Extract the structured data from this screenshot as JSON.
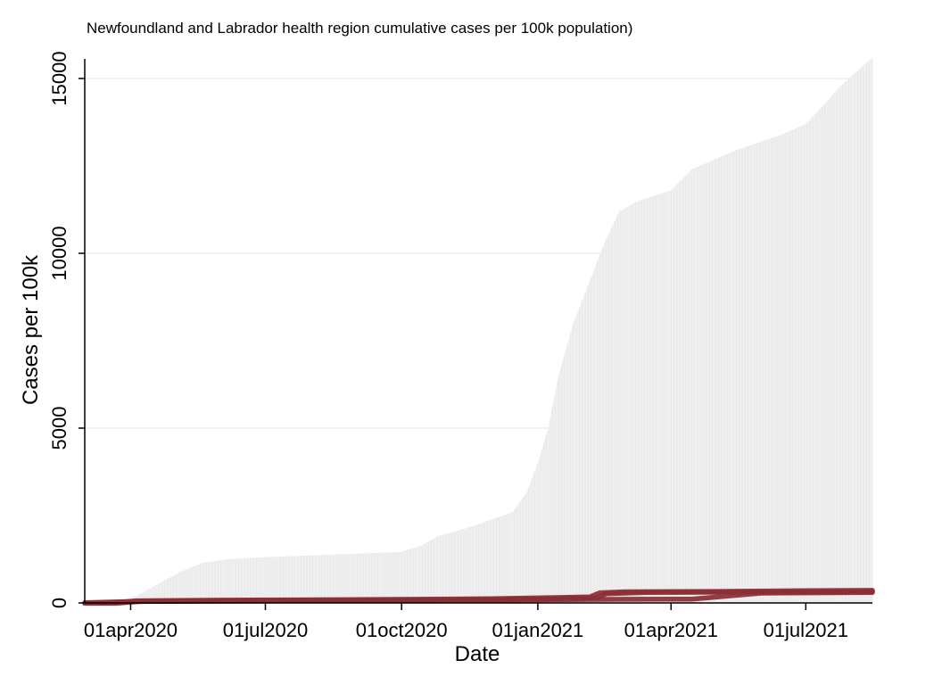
{
  "chart_data": {
    "type": "area",
    "title": "Newfoundland and Labrador health region cumulative cases per 100k population)",
    "xlabel": "Date",
    "ylabel": "Cases per 100k",
    "xlim": [
      "2020-03-01",
      "2021-08-15"
    ],
    "ylim": [
      0,
      15000
    ],
    "x_ticks": [
      {
        "date": "2020-04-01",
        "label": "01apr2020"
      },
      {
        "date": "2020-07-01",
        "label": "01jul2020"
      },
      {
        "date": "2020-10-01",
        "label": "01oct2020"
      },
      {
        "date": "2021-01-01",
        "label": "01jan2021"
      },
      {
        "date": "2021-04-01",
        "label": "01apr2021"
      },
      {
        "date": "2021-07-01",
        "label": "01jul2021"
      }
    ],
    "y_ticks": [
      0,
      5000,
      10000,
      15000
    ],
    "grid": true,
    "legend": "none",
    "series": [
      {
        "style": "area-spikes",
        "color": "#efefef",
        "points": [
          [
            "2020-03-01",
            0
          ],
          [
            "2020-03-25",
            50
          ],
          [
            "2020-04-05",
            200
          ],
          [
            "2020-04-20",
            550
          ],
          [
            "2020-05-05",
            900
          ],
          [
            "2020-05-20",
            1150
          ],
          [
            "2020-06-05",
            1250
          ],
          [
            "2020-07-01",
            1310
          ],
          [
            "2020-08-01",
            1360
          ],
          [
            "2020-09-01",
            1410
          ],
          [
            "2020-10-01",
            1460
          ],
          [
            "2020-10-15",
            1650
          ],
          [
            "2020-10-25",
            1900
          ],
          [
            "2020-11-15",
            2150
          ],
          [
            "2020-12-15",
            2600
          ],
          [
            "2020-12-25",
            3200
          ],
          [
            "2021-01-01",
            4000
          ],
          [
            "2021-01-08",
            5000
          ],
          [
            "2021-01-15",
            6500
          ],
          [
            "2021-01-25",
            8000
          ],
          [
            "2021-02-05",
            9200
          ],
          [
            "2021-02-15",
            10300
          ],
          [
            "2021-02-25",
            11200
          ],
          [
            "2021-03-10",
            11500
          ],
          [
            "2021-04-01",
            11800
          ],
          [
            "2021-04-15",
            12400
          ],
          [
            "2021-05-15",
            12950
          ],
          [
            "2021-06-15",
            13400
          ],
          [
            "2021-07-01",
            13700
          ],
          [
            "2021-07-10",
            14100
          ],
          [
            "2021-07-25",
            14800
          ],
          [
            "2021-08-15",
            15600
          ]
        ]
      },
      {
        "style": "line",
        "color": "#8b2e35",
        "points": [
          [
            "2020-03-01",
            0
          ],
          [
            "2020-03-20",
            0
          ],
          [
            "2020-04-05",
            60
          ],
          [
            "2020-06-01",
            80
          ],
          [
            "2020-09-01",
            95
          ],
          [
            "2020-12-01",
            120
          ],
          [
            "2021-02-05",
            170
          ],
          [
            "2021-02-12",
            290
          ],
          [
            "2021-03-01",
            320
          ],
          [
            "2021-05-01",
            330
          ],
          [
            "2021-07-01",
            350
          ],
          [
            "2021-08-15",
            360
          ]
        ]
      },
      {
        "style": "line",
        "color": "#8b2e35",
        "points": [
          [
            "2020-03-01",
            -10
          ],
          [
            "2020-03-22",
            -10
          ],
          [
            "2020-04-10",
            50
          ],
          [
            "2020-07-01",
            70
          ],
          [
            "2020-10-01",
            85
          ],
          [
            "2021-01-01",
            110
          ],
          [
            "2021-02-10",
            150
          ],
          [
            "2021-02-16",
            260
          ],
          [
            "2021-03-15",
            300
          ],
          [
            "2021-06-01",
            310
          ],
          [
            "2021-08-15",
            320
          ]
        ]
      },
      {
        "style": "line",
        "color": "#8b2e35",
        "points": [
          [
            "2020-03-01",
            5
          ],
          [
            "2020-04-01",
            40
          ],
          [
            "2020-08-01",
            60
          ],
          [
            "2020-12-01",
            80
          ],
          [
            "2021-02-01",
            100
          ],
          [
            "2021-03-01",
            105
          ],
          [
            "2021-04-15",
            110
          ],
          [
            "2021-06-01",
            280
          ],
          [
            "2021-08-15",
            300
          ]
        ]
      }
    ]
  }
}
